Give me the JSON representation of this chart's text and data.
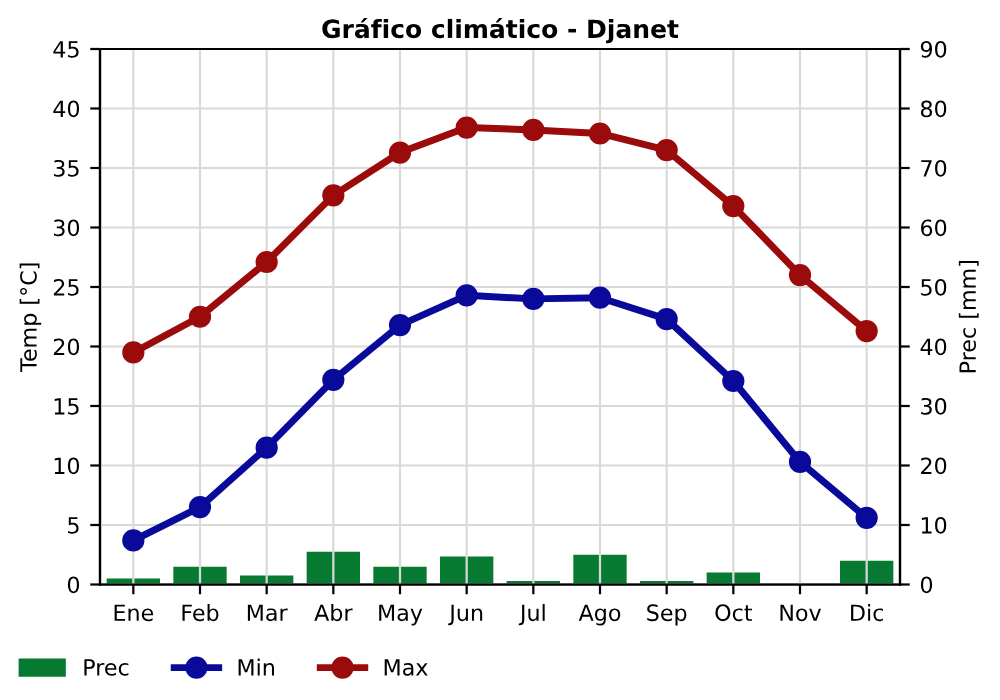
{
  "chart_data": {
    "type": "line",
    "title": "Gráfico climático - Djanet",
    "ylabel": "Temp [°C]",
    "y2label": "Prec [mm]",
    "categories": [
      "Ene",
      "Feb",
      "Mar",
      "Abr",
      "May",
      "Jun",
      "Jul",
      "Ago",
      "Sep",
      "Oct",
      "Nov",
      "Dic"
    ],
    "series": [
      {
        "name": "Prec",
        "type": "bar",
        "axis": "y2",
        "color": "#077a31",
        "values": [
          1.0,
          3.0,
          1.5,
          5.5,
          3.0,
          4.7,
          0.6,
          5.0,
          0.6,
          2.0,
          null,
          4.0
        ]
      },
      {
        "name": "Min",
        "color": "#0a0a9a",
        "values": [
          3.7,
          6.5,
          11.5,
          17.2,
          21.8,
          24.3,
          24.0,
          24.1,
          22.3,
          17.1,
          10.3,
          5.6
        ]
      },
      {
        "name": "Max",
        "color": "#9b0b0b",
        "values": [
          19.5,
          22.5,
          27.1,
          32.7,
          36.3,
          38.4,
          38.2,
          37.9,
          36.5,
          31.8,
          26.0,
          21.3
        ]
      }
    ],
    "ylim": [
      0,
      45
    ],
    "yticks": [
      0,
      5,
      10,
      15,
      20,
      25,
      30,
      35,
      40,
      45
    ],
    "y2lim": [
      0,
      90
    ],
    "y2ticks": [
      0,
      10,
      20,
      30,
      40,
      50,
      60,
      70,
      80,
      90
    ],
    "grid": true,
    "legend": "bottom left",
    "marker": "circle",
    "line_style": "solid"
  }
}
